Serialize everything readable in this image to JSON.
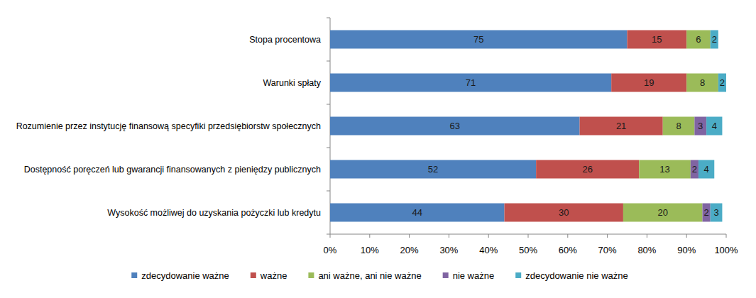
{
  "chart_data": {
    "type": "bar",
    "orientation": "horizontal",
    "stacked": true,
    "data_labels": true,
    "grid": false,
    "legend": "bottom",
    "categories": [
      "Stopa procentowa",
      "Warunki spłaty",
      "Rozumienie przez instytucję finansową specyfiki przedsiębiorstw społecznych",
      "Dostępność poręczeń lub gwarancji finansowanych z pieniędzy publicznych",
      "Wysokość możliwej do uzyskania pożyczki lub kredytu"
    ],
    "series": [
      {
        "name": "zdecydowanie ważne",
        "color": "#4f81bd",
        "values": [
          75,
          71,
          63,
          52,
          44
        ]
      },
      {
        "name": "ważne",
        "color": "#c0504d",
        "values": [
          15,
          19,
          21,
          26,
          30
        ]
      },
      {
        "name": "ani ważne, ani nie ważne",
        "color": "#9bbb59",
        "values": [
          6,
          8,
          8,
          13,
          20
        ]
      },
      {
        "name": "nie ważne",
        "color": "#8064a2",
        "values": [
          0,
          0,
          3,
          2,
          2
        ]
      },
      {
        "name": "zdecydowanie nie ważne",
        "color": "#4bacc6",
        "values": [
          2,
          2,
          4,
          4,
          3
        ]
      }
    ],
    "xlim": [
      0,
      100
    ],
    "xticks": [
      {
        "value": 0,
        "label": "0%"
      },
      {
        "value": 10,
        "label": "10%"
      },
      {
        "value": 20,
        "label": "20%"
      },
      {
        "value": 30,
        "label": "30%"
      },
      {
        "value": 40,
        "label": "40%"
      },
      {
        "value": 50,
        "label": "50%"
      },
      {
        "value": 60,
        "label": "60%"
      },
      {
        "value": 70,
        "label": "70%"
      },
      {
        "value": 80,
        "label": "80%"
      },
      {
        "value": 90,
        "label": "90%"
      },
      {
        "value": 100,
        "label": "100%"
      }
    ]
  }
}
